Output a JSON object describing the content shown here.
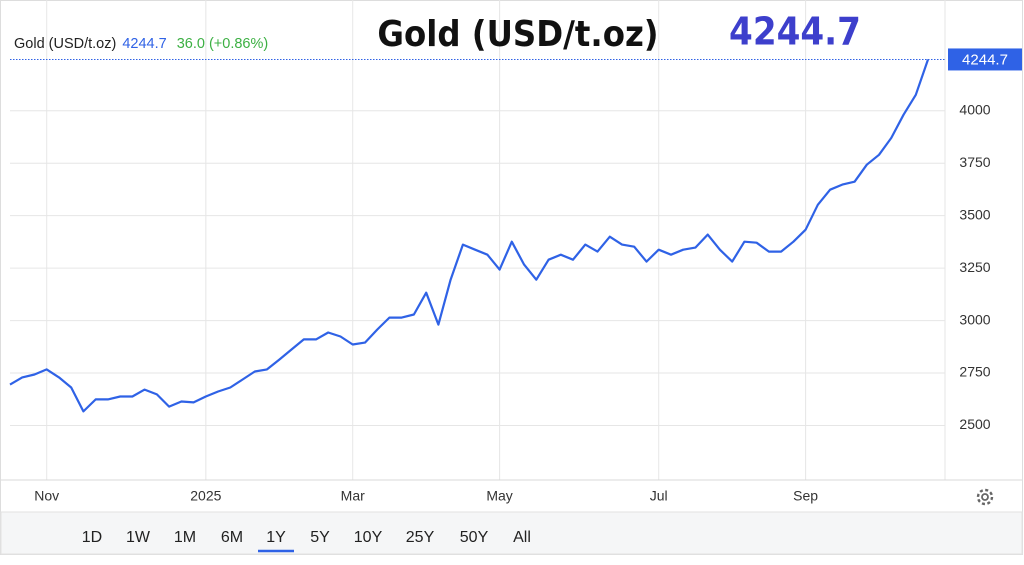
{
  "chart_data": {
    "type": "line",
    "title": "Gold (USD/t.oz)",
    "change": "36.0 (+0.86%)",
    "categories": [
      null,
      null,
      null,
      "Nov",
      null,
      null,
      null,
      null,
      null,
      null,
      null,
      null,
      null,
      null,
      null,
      null,
      "2025",
      null,
      null,
      null,
      null,
      null,
      null,
      null,
      null,
      null,
      null,
      null,
      "Mar",
      null,
      null,
      null,
      null,
      null,
      null,
      null,
      null,
      null,
      null,
      null,
      "May",
      null,
      null,
      null,
      null,
      null,
      null,
      null,
      null,
      null,
      null,
      null,
      null,
      "Jul",
      null,
      null,
      null,
      null,
      null,
      null,
      null,
      null,
      null,
      null,
      null,
      "Sep",
      null,
      null,
      null,
      null,
      null,
      null,
      null,
      null,
      null,
      null
    ],
    "series": [
      {
        "name": "Gold (USD/t.oz)",
        "color": "#2f62e6",
        "values": [
          2695,
          2729,
          2743,
          2767,
          2729,
          2681,
          2567,
          2624,
          2624,
          2638,
          2638,
          2671,
          2648,
          2590,
          2614,
          2610,
          2638,
          2662,
          2681,
          2719,
          2757,
          2767,
          2814,
          2862,
          2910,
          2910,
          2943,
          2924,
          2886,
          2895,
          2957,
          3014,
          3014,
          3029,
          3133,
          2981,
          3195,
          3362,
          3338,
          3314,
          3243,
          3376,
          3267,
          3195,
          3290,
          3314,
          3290,
          3362,
          3329,
          3400,
          3362,
          3352,
          3281,
          3338,
          3314,
          3338,
          3348,
          3410,
          3338,
          3281,
          3376,
          3371,
          3329,
          3329,
          3376,
          3433,
          3552,
          3624,
          3648,
          3662,
          3743,
          3790,
          3871,
          3981,
          4076,
          4244.7
        ]
      }
    ],
    "ylim": [
      2240,
      4490
    ],
    "yticks": [
      2500,
      2750,
      3000,
      3250,
      3500,
      3750,
      4000
    ],
    "grid": true,
    "ranges": [
      "1D",
      "1W",
      "1M",
      "6M",
      "1Y",
      "5Y",
      "10Y",
      "25Y",
      "50Y",
      "All"
    ],
    "selected_range": "1Y"
  }
}
